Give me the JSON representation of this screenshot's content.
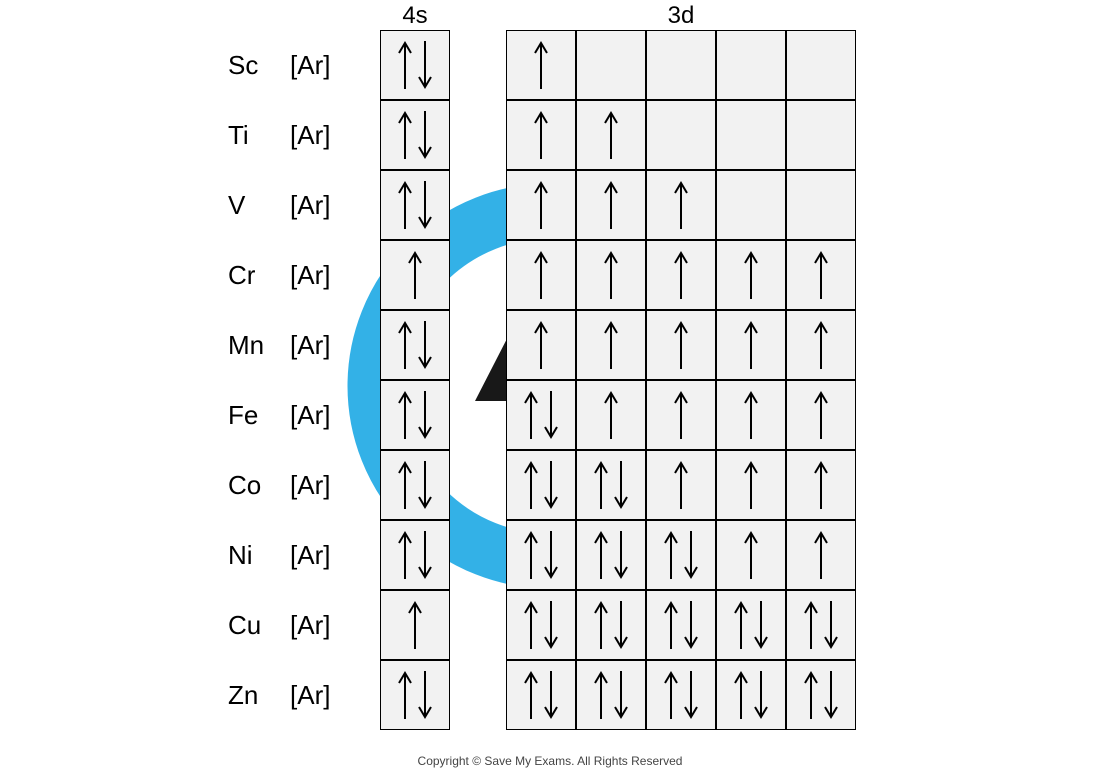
{
  "headers": {
    "col_4s": "4s",
    "col_3d": "3d"
  },
  "core_label": "[Ar]",
  "cell_bg": "#f2f2f2",
  "cell_border": "#000000",
  "arrow_color": "#000000",
  "watermark": {
    "ring_color": "#1DA9E5",
    "bolt_color": "#000000"
  },
  "elements": [
    {
      "symbol": "Sc",
      "s4": "ud",
      "d3": [
        "u",
        "",
        "",
        "",
        ""
      ]
    },
    {
      "symbol": "Ti",
      "s4": "ud",
      "d3": [
        "u",
        "u",
        "",
        "",
        ""
      ]
    },
    {
      "symbol": "V",
      "s4": "ud",
      "d3": [
        "u",
        "u",
        "u",
        "",
        ""
      ]
    },
    {
      "symbol": "Cr",
      "s4": "u",
      "d3": [
        "u",
        "u",
        "u",
        "u",
        "u"
      ]
    },
    {
      "symbol": "Mn",
      "s4": "ud",
      "d3": [
        "u",
        "u",
        "u",
        "u",
        "u"
      ]
    },
    {
      "symbol": "Fe",
      "s4": "ud",
      "d3": [
        "ud",
        "u",
        "u",
        "u",
        "u"
      ]
    },
    {
      "symbol": "Co",
      "s4": "ud",
      "d3": [
        "ud",
        "ud",
        "u",
        "u",
        "u"
      ]
    },
    {
      "symbol": "Ni",
      "s4": "ud",
      "d3": [
        "ud",
        "ud",
        "ud",
        "u",
        "u"
      ]
    },
    {
      "symbol": "Cu",
      "s4": "u",
      "d3": [
        "ud",
        "ud",
        "ud",
        "ud",
        "ud"
      ]
    },
    {
      "symbol": "Zn",
      "s4": "ud",
      "d3": [
        "ud",
        "ud",
        "ud",
        "ud",
        "ud"
      ]
    }
  ],
  "copyright": "Copyright © Save My Exams. All Rights Reserved"
}
